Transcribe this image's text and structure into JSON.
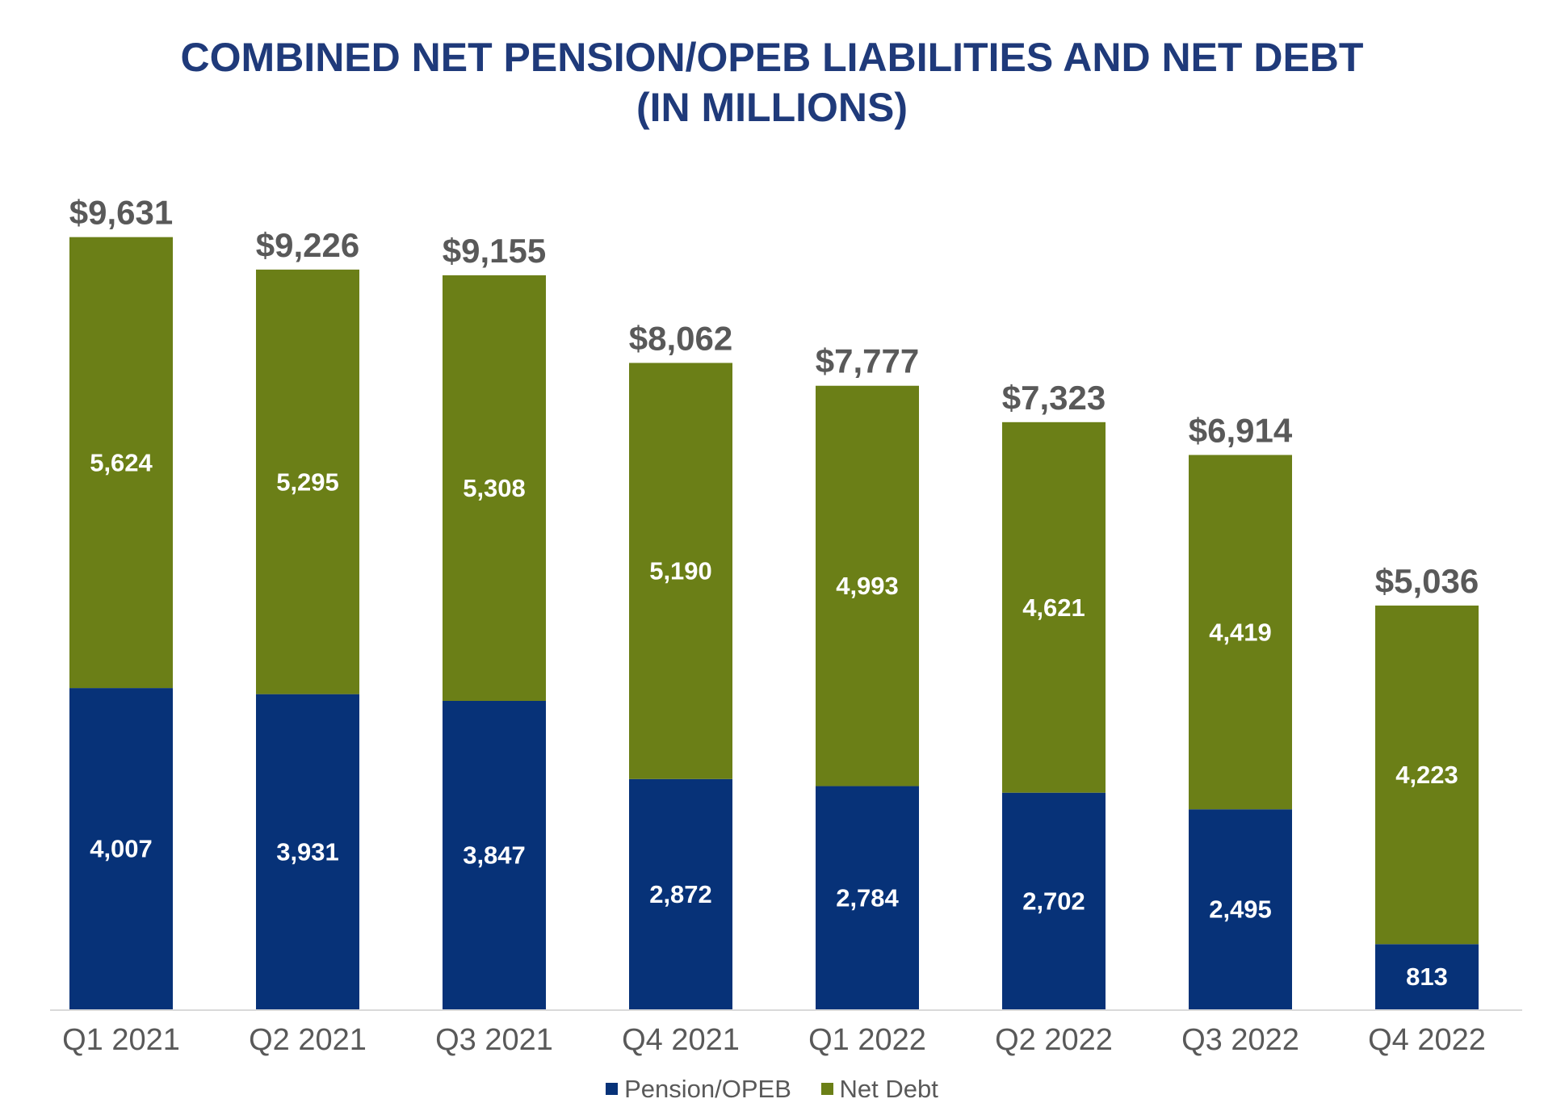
{
  "chart_data": {
    "type": "bar",
    "stacked": true,
    "title": "COMBINED NET PENSION/OPEB LIABILITIES AND NET DEBT (IN MILLIONS)",
    "title_lines": [
      "COMBINED NET PENSION/OPEB LIABILITIES AND NET DEBT",
      "(IN MILLIONS)"
    ],
    "categories": [
      "Q1 2021",
      "Q2 2021",
      "Q3 2021",
      "Q4 2021",
      "Q1 2022",
      "Q2 2022",
      "Q3 2022",
      "Q4 2022"
    ],
    "series": [
      {
        "name": "Pension/OPEB",
        "color": "#073278",
        "values": [
          4007,
          3931,
          3847,
          2872,
          2784,
          2702,
          2495,
          813
        ],
        "labels": [
          "4,007",
          "3,931",
          "3,847",
          "2,872",
          "2,784",
          "2,702",
          "2,495",
          "813"
        ]
      },
      {
        "name": "Net Debt",
        "color": "#6b7f17",
        "values": [
          5624,
          5295,
          5308,
          5190,
          4993,
          4621,
          4419,
          4223
        ],
        "labels": [
          "5,624",
          "5,295",
          "5,308",
          "5,190",
          "4,993",
          "4,621",
          "4,419",
          "4,223"
        ]
      }
    ],
    "totals": [
      9631,
      9226,
      9155,
      8062,
      7777,
      7323,
      6914,
      5036
    ],
    "total_labels": [
      "$9,631",
      "$9,226",
      "$9,155",
      "$8,062",
      "$7,777",
      "$7,323",
      "$6,914",
      "$5,036"
    ],
    "ylim": [
      0,
      10000
    ],
    "xlabel": "",
    "ylabel": "",
    "grid": false,
    "legend_position": "bottom",
    "colors": {
      "title": "#1f3a7a",
      "axis_text": "#595959",
      "segment_text": "#ffffff",
      "baseline": "#d9d9d9"
    }
  }
}
